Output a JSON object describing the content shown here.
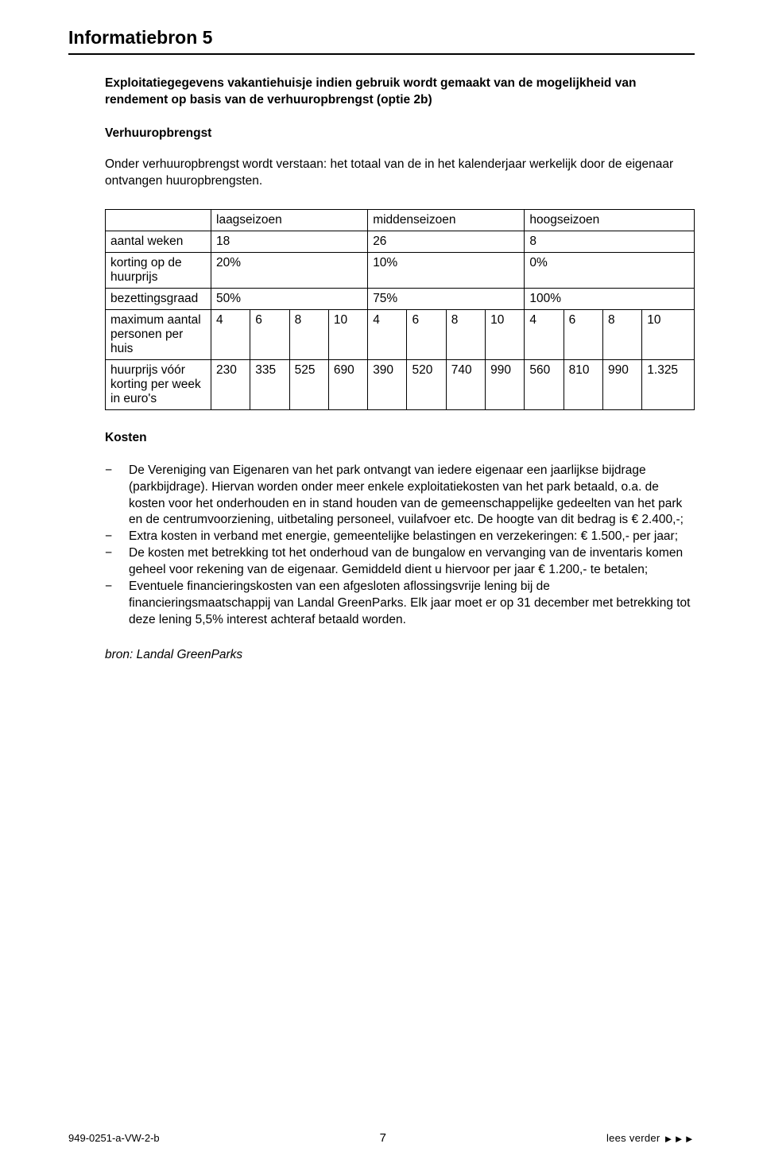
{
  "heading": "Informatiebron 5",
  "intro_bold": "Exploitatiegegevens vakantiehuisje indien gebruik wordt gemaakt van de mogelijkheid van rendement op basis van de verhuuropbrengst (optie 2b)",
  "subhead1": "Verhuuropbrengst",
  "para1": "Onder verhuuropbrengst wordt verstaan: het totaal van de in het kalenderjaar werkelijk door de eigenaar ontvangen huuropbrengsten.",
  "table": {
    "season_headers": [
      "laagseizoen",
      "middenseizoen",
      "hoogseizoen"
    ],
    "rows_simple": [
      {
        "label": "aantal weken",
        "values": [
          "18",
          "26",
          "8"
        ]
      },
      {
        "label": "korting op de huurprijs",
        "values": [
          "20%",
          "10%",
          "0%"
        ]
      },
      {
        "label": "bezettingsgraad",
        "values": [
          "50%",
          "75%",
          "100%"
        ]
      }
    ],
    "rows_split": [
      {
        "label": "maximum aantal personen per huis",
        "values": [
          "4",
          "6",
          "8",
          "10",
          "4",
          "6",
          "8",
          "10",
          "4",
          "6",
          "8",
          "10"
        ]
      },
      {
        "label": "huurprijs vóór korting per week in euro's",
        "values": [
          "230",
          "335",
          "525",
          "690",
          "390",
          "520",
          "740",
          "990",
          "560",
          "810",
          "990",
          "1.325"
        ]
      }
    ]
  },
  "kosten_head": "Kosten",
  "bullets": [
    "De Vereniging van Eigenaren van het park ontvangt van iedere eigenaar een jaarlijkse bijdrage (parkbijdrage). Hiervan worden onder meer enkele exploitatiekosten van het park betaald, o.a. de kosten voor het onderhouden en in stand houden van de gemeenschappelijke gedeelten van het park en de centrumvoorziening, uitbetaling personeel, vuilafvoer etc. De hoogte van dit bedrag is € 2.400,-;",
    "Extra kosten in verband met energie, gemeentelijke belastingen en verzekeringen: € 1.500,- per jaar;",
    "De kosten met betrekking tot het onderhoud van de bungalow en vervanging van de inventaris komen geheel voor rekening van de eigenaar. Gemiddeld dient u hiervoor per jaar € 1.200,- te betalen;",
    "Eventuele financieringskosten van een afgesloten aflossingsvrije lening bij de financieringsmaatschappij van Landal GreenParks. Elk jaar moet er op 31 december met betrekking tot deze lening 5,5% interest achteraf betaald worden."
  ],
  "source": "bron: Landal GreenParks",
  "footer": {
    "left": "949-0251-a-VW-2-b",
    "page": "7",
    "right_text": "lees verder",
    "arrows": "►►►"
  },
  "dash": "−"
}
